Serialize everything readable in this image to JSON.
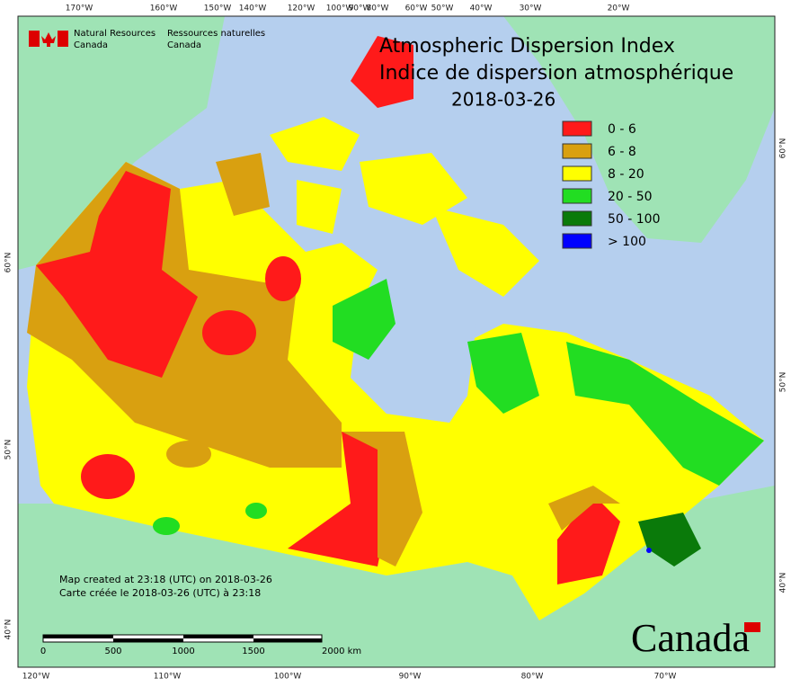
{
  "header": {
    "agency_en": [
      "Natural Resources",
      "Canada"
    ],
    "agency_fr": [
      "Ressources naturelles",
      "Canada"
    ]
  },
  "title": [
    "Atmospheric Dispersion Index",
    "Indice de dispersion atmosphérique",
    "2018-03-26"
  ],
  "legend": [
    {
      "label": "0 - 6",
      "color": "#ff1a1a"
    },
    {
      "label": "6 - 8",
      "color": "#d9a010"
    },
    {
      "label": "8 - 20",
      "color": "#ffff00"
    },
    {
      "label": "20 - 50",
      "color": "#22dd22"
    },
    {
      "label": "50 - 100",
      "color": "#0a7a0a"
    },
    {
      "label": "> 100",
      "color": "#0000ff"
    }
  ],
  "graticule": {
    "top": [
      "170°W",
      "160°W",
      "150°W",
      "140°W",
      "120°W",
      "100°W",
      "90°W",
      "80°W",
      "60°W",
      "50°W",
      "40°W",
      "30°W",
      "20°W"
    ],
    "bottom": [
      "120°W",
      "110°W",
      "100°W",
      "90°W",
      "80°W",
      "70°W"
    ],
    "left": [
      "60°N",
      "50°N",
      "40°N"
    ],
    "right": [
      "60°N",
      "50°N",
      "40°N"
    ]
  },
  "credits": [
    "Map created at 23:18 (UTC) on 2018-03-26",
    "Carte créée le 2018-03-26 (UTC) à 23:18"
  ],
  "scale_bar": [
    "0",
    "500",
    "1000",
    "1500",
    "2000  km"
  ],
  "wordmark": "Canada"
}
